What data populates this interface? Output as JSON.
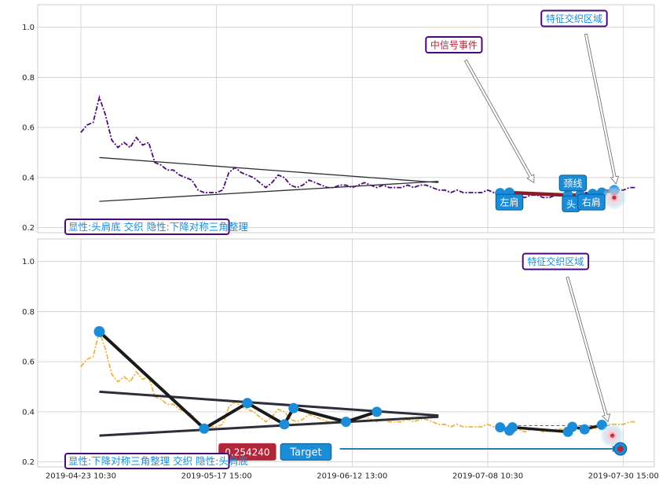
{
  "colors": {
    "upper_series": "#4b0a7a",
    "lower_series": "#f0b43c",
    "triangle_lines": "#2e2e3a",
    "zigzag": "#1a1a1a",
    "marker": "#1a8cd8",
    "label_box": "#1a8cd8",
    "annotation_border": "#4b0a7a",
    "annotation_text_blue": "#1a8cd8",
    "annotation_text_red": "#b2263a",
    "target_arrow": "#2a7fb0",
    "price_box": "#b2263a",
    "grid": "#cccccc"
  },
  "chart_data": [
    {
      "type": "line",
      "ylim": [
        0.18,
        1.09
      ],
      "yticks": [
        "0.2",
        "0.4",
        "0.6",
        "0.8",
        "1.0"
      ],
      "grid": true,
      "series": [
        {
          "x": [
            0,
            1,
            2,
            3,
            4,
            5,
            6,
            7,
            8,
            9,
            10,
            11,
            12,
            13,
            14,
            15,
            16,
            17,
            18,
            19,
            20,
            21,
            22,
            23,
            24,
            25,
            26,
            27,
            28,
            29,
            30,
            31,
            32,
            33,
            34,
            35,
            36,
            37,
            38,
            39,
            40,
            41,
            42,
            43,
            44,
            45,
            46,
            47,
            48,
            49,
            50,
            51,
            52,
            53,
            54,
            55,
            56,
            57,
            58,
            59,
            60,
            61,
            62,
            63,
            64,
            65,
            66,
            67,
            68,
            69,
            70,
            71,
            72,
            73,
            74,
            75,
            76,
            77,
            78,
            79,
            80,
            81,
            82,
            83,
            84,
            85,
            86,
            87,
            88,
            89,
            90
          ],
          "values": [
            0.58,
            0.61,
            0.62,
            0.72,
            0.65,
            0.55,
            0.52,
            0.54,
            0.52,
            0.56,
            0.53,
            0.54,
            0.46,
            0.45,
            0.43,
            0.43,
            0.41,
            0.4,
            0.39,
            0.35,
            0.34,
            0.34,
            0.34,
            0.35,
            0.42,
            0.44,
            0.42,
            0.41,
            0.4,
            0.38,
            0.36,
            0.38,
            0.41,
            0.4,
            0.37,
            0.36,
            0.37,
            0.39,
            0.38,
            0.37,
            0.36,
            0.36,
            0.37,
            0.37,
            0.36,
            0.37,
            0.38,
            0.37,
            0.36,
            0.37,
            0.36,
            0.36,
            0.36,
            0.37,
            0.36,
            0.37,
            0.37,
            0.36,
            0.35,
            0.35,
            0.34,
            0.35,
            0.34,
            0.34,
            0.34,
            0.34,
            0.35,
            0.34,
            0.34,
            0.33,
            0.32,
            0.33,
            0.32,
            0.33,
            0.33,
            0.32,
            0.32,
            0.33,
            0.33,
            0.34,
            0.33,
            0.34,
            0.34,
            0.33,
            0.34,
            0.35,
            0.35,
            0.35,
            0.35,
            0.36,
            0.36
          ]
        }
      ],
      "triangle_upper": [
        [
          3,
          0.48
        ],
        [
          58,
          0.38
        ]
      ],
      "triangle_lower": [
        [
          3,
          0.305
        ],
        [
          58,
          0.385
        ]
      ],
      "pattern_points": [
        {
          "x": 68,
          "y": 0.338
        },
        {
          "x": 69.5,
          "y": 0.34
        },
        {
          "x": 79,
          "y": 0.33
        },
        {
          "x": 81,
          "y": 0.33
        },
        {
          "x": 83,
          "y": 0.335
        },
        {
          "x": 84.5,
          "y": 0.34
        },
        {
          "x": 86.5,
          "y": 0.35
        }
      ],
      "pattern_labels": [
        {
          "text": "左肩",
          "x": 69.5,
          "y": 0.302
        },
        {
          "text": "颈线",
          "x": 79.8,
          "y": 0.378
        },
        {
          "text": "头",
          "x": 79.5,
          "y": 0.295
        },
        {
          "text": "右肩",
          "x": 82.8,
          "y": 0.302
        }
      ],
      "annotations": [
        {
          "text": "中信号事件",
          "x": 60.5,
          "y": 0.93,
          "color": "annotation_text_red",
          "arrow_to": [
            73.5,
            0.38
          ]
        },
        {
          "text": "特征交织区域",
          "x": 80,
          "y": 1.035,
          "color": "annotation_text_blue",
          "arrow_to": [
            86.8,
            0.375
          ]
        }
      ],
      "bottom_label": "显性:头肩底 交织 隐性:下降对称三角整理"
    },
    {
      "type": "line",
      "ylim": [
        0.18,
        1.09
      ],
      "yticks": [
        "0.2",
        "0.4",
        "0.6",
        "0.8",
        "1.0"
      ],
      "grid": true,
      "x_tick_labels": [
        "2019-04-23 10:30",
        "2019-05-17 15:00",
        "2019-06-12 13:00",
        "2019-07-08 10:30",
        "2019-07-30 15:00"
      ],
      "series": [
        {
          "x": [
            0,
            1,
            2,
            3,
            4,
            5,
            6,
            7,
            8,
            9,
            10,
            11,
            12,
            13,
            14,
            15,
            16,
            17,
            18,
            19,
            20,
            21,
            22,
            23,
            24,
            25,
            26,
            27,
            28,
            29,
            30,
            31,
            32,
            33,
            34,
            35,
            36,
            37,
            38,
            39,
            40,
            41,
            42,
            43,
            44,
            45,
            46,
            47,
            48,
            49,
            50,
            51,
            52,
            53,
            54,
            55,
            56,
            57,
            58,
            59,
            60,
            61,
            62,
            63,
            64,
            65,
            66,
            67,
            68,
            69,
            70,
            71,
            72,
            73,
            74,
            75,
            76,
            77,
            78,
            79,
            80,
            81,
            82,
            83,
            84,
            85,
            86,
            87,
            88,
            89,
            90
          ],
          "values": [
            0.58,
            0.61,
            0.62,
            0.72,
            0.65,
            0.55,
            0.52,
            0.54,
            0.52,
            0.56,
            0.53,
            0.54,
            0.46,
            0.45,
            0.43,
            0.43,
            0.41,
            0.4,
            0.39,
            0.35,
            0.34,
            0.34,
            0.34,
            0.35,
            0.42,
            0.44,
            0.42,
            0.41,
            0.4,
            0.38,
            0.36,
            0.38,
            0.41,
            0.4,
            0.37,
            0.36,
            0.37,
            0.39,
            0.38,
            0.37,
            0.36,
            0.36,
            0.37,
            0.37,
            0.36,
            0.37,
            0.38,
            0.37,
            0.36,
            0.37,
            0.36,
            0.36,
            0.36,
            0.37,
            0.36,
            0.37,
            0.37,
            0.36,
            0.35,
            0.35,
            0.34,
            0.35,
            0.34,
            0.34,
            0.34,
            0.34,
            0.35,
            0.34,
            0.34,
            0.33,
            0.32,
            0.33,
            0.32,
            0.33,
            0.33,
            0.32,
            0.32,
            0.33,
            0.33,
            0.34,
            0.33,
            0.34,
            0.34,
            0.33,
            0.34,
            0.35,
            0.35,
            0.35,
            0.35,
            0.36,
            0.36
          ]
        }
      ],
      "triangle_upper": [
        [
          3,
          0.48
        ],
        [
          58,
          0.385
        ]
      ],
      "triangle_lower": [
        [
          3,
          0.305
        ],
        [
          58,
          0.38
        ]
      ],
      "zigzag": [
        [
          3,
          0.72
        ],
        [
          20,
          0.333
        ],
        [
          27,
          0.435
        ],
        [
          33,
          0.35
        ],
        [
          34.5,
          0.415
        ],
        [
          43,
          0.36
        ],
        [
          48,
          0.4
        ]
      ],
      "pattern_points": [
        {
          "x": 68,
          "y": 0.338
        },
        {
          "x": 69.5,
          "y": 0.325
        },
        {
          "x": 70,
          "y": 0.338
        },
        {
          "x": 79,
          "y": 0.32
        },
        {
          "x": 79.7,
          "y": 0.34
        },
        {
          "x": 81.7,
          "y": 0.33
        },
        {
          "x": 84.5,
          "y": 0.348
        }
      ],
      "price_label": {
        "text": "0.254240",
        "x": 27,
        "y": 0.24
      },
      "target_label": {
        "text": "Target",
        "x": 36.5,
        "y": 0.24
      },
      "target_arrow": {
        "from": [
          42,
          0.252
        ],
        "to": [
          87.5,
          0.252
        ]
      },
      "annotations": [
        {
          "text": "特征交织区域",
          "x": 77,
          "y": 1.0,
          "color": "annotation_text_blue",
          "arrow_to": [
            85.5,
            0.36
          ]
        }
      ],
      "bottom_label": "显性:下降对称三角整理 交织 隐性:头肩底"
    }
  ]
}
